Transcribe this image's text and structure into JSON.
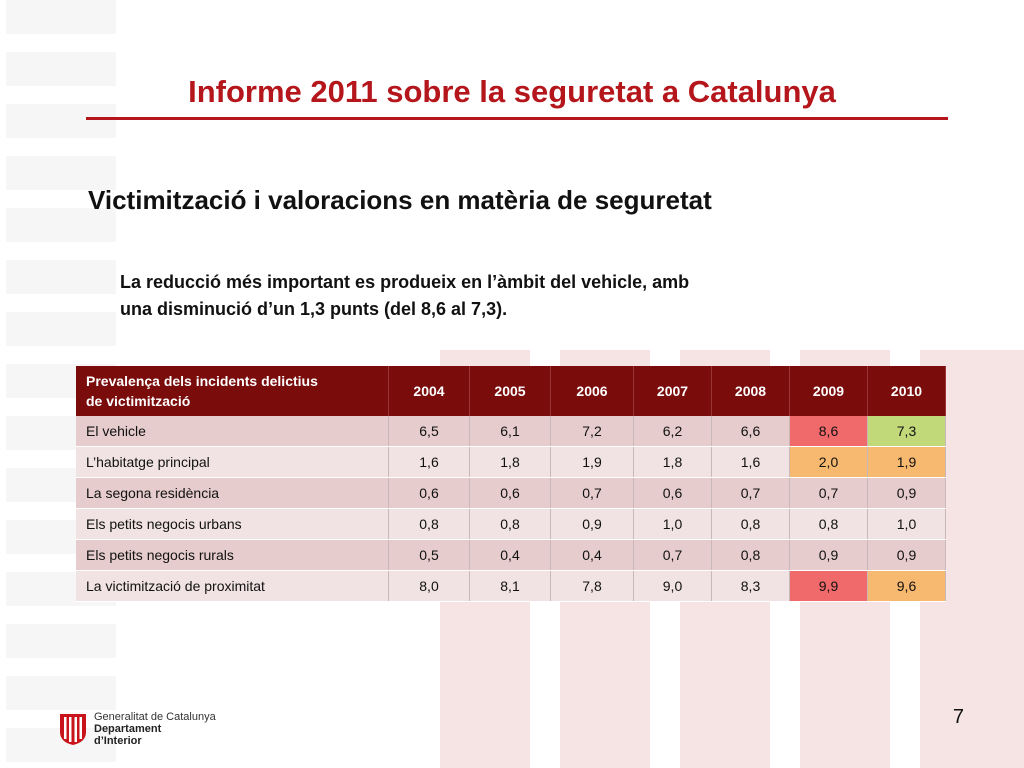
{
  "slide": {
    "title": "Informe 2011 sobre la seguretat a Catalunya",
    "subtitle": "Victimització i valoracions en matèria de seguretat",
    "lead_line1": "La reducció més important es produeix en l’àmbit del vehicle, amb",
    "lead_line2": "una disminució d’un 1,3 punts (del 8,6 al 7,3).",
    "page_number": "7"
  },
  "table": {
    "header_line1": "Prevalença dels incidents delictius",
    "header_line2": "de victimització",
    "years": [
      "2004",
      "2005",
      "2006",
      "2007",
      "2008",
      "2009",
      "2010"
    ],
    "rows": [
      {
        "label": "El vehicle",
        "values": [
          "6,5",
          "6,1",
          "7,2",
          "6,2",
          "6,6",
          "8,6",
          "7,3"
        ],
        "highlights": [
          "",
          "",
          "",
          "",
          "",
          "red",
          "green"
        ]
      },
      {
        "label": "L’habitatge principal",
        "values": [
          "1,6",
          "1,8",
          "1,9",
          "1,8",
          "1,6",
          "2,0",
          "1,9"
        ],
        "highlights": [
          "",
          "",
          "",
          "",
          "",
          "orange",
          "orange"
        ]
      },
      {
        "label": "La segona residència",
        "values": [
          "0,6",
          "0,6",
          "0,7",
          "0,6",
          "0,7",
          "0,7",
          "0,9"
        ],
        "highlights": [
          "",
          "",
          "",
          "",
          "",
          "",
          ""
        ]
      },
      {
        "label": "Els petits negocis urbans",
        "values": [
          "0,8",
          "0,8",
          "0,9",
          "1,0",
          "0,8",
          "0,8",
          "1,0"
        ],
        "highlights": [
          "",
          "",
          "",
          "",
          "",
          "",
          ""
        ]
      },
      {
        "label": "Els petits negocis rurals",
        "values": [
          "0,5",
          "0,4",
          "0,4",
          "0,7",
          "0,8",
          "0,9",
          "0,9"
        ],
        "highlights": [
          "",
          "",
          "",
          "",
          "",
          "",
          ""
        ]
      },
      {
        "label": "La victimització de proximitat",
        "values": [
          "8,0",
          "8,1",
          "7,8",
          "9,0",
          "8,3",
          "9,9",
          "9,6"
        ],
        "highlights": [
          "",
          "",
          "",
          "",
          "",
          "red",
          "orange"
        ]
      }
    ]
  },
  "footer": {
    "org_line1": "Generalitat de Catalunya",
    "org_line2": "Departament",
    "org_line3": "d’Interior"
  },
  "colors": {
    "accent": "#b4161c",
    "header_bg": "#7a0c0c",
    "highlight_red": "#f0696b",
    "highlight_green": "#c2d97a",
    "highlight_orange": "#f7b970"
  }
}
